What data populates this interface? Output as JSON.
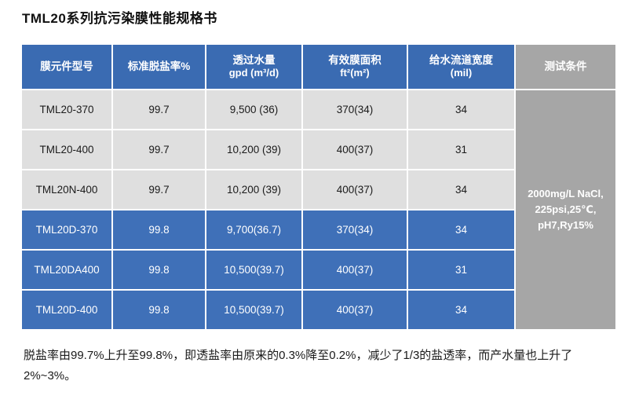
{
  "title": "TML20系列抗污染膜性能规格书",
  "table": {
    "headers": [
      {
        "line1": "膜元件型号",
        "line2": ""
      },
      {
        "line1": "标准脱盐率%",
        "line2": ""
      },
      {
        "line1": "透过水量",
        "line2": "gpd (m³/d)"
      },
      {
        "line1": "有效膜面积",
        "line2": "ft²(m²)"
      },
      {
        "line1": "给水流道宽度",
        "line2": "(mil)"
      },
      {
        "line1": "测试条件",
        "line2": ""
      }
    ],
    "rows": [
      {
        "model": "TML20-370",
        "rejection": "99.7",
        "flow": "9,500 (36)",
        "area": "370(34)",
        "channel": "34"
      },
      {
        "model": "TML20-400",
        "rejection": "99.7",
        "flow": "10,200 (39)",
        "area": "400(37)",
        "channel": "31"
      },
      {
        "model": "TML20N-400",
        "rejection": "99.7",
        "flow": "10,200 (39)",
        "area": "400(37)",
        "channel": "34"
      },
      {
        "model": "TML20D-370",
        "rejection": "99.8",
        "flow": "9,700(36.7)",
        "area": "370(34)",
        "channel": "34"
      },
      {
        "model": "TML20DA400",
        "rejection": "99.8",
        "flow": "10,500(39.7)",
        "area": "400(37)",
        "channel": "31"
      },
      {
        "model": "TML20D-400",
        "rejection": "99.8",
        "flow": "10,500(39.7)",
        "area": "400(37)",
        "channel": "34"
      }
    ],
    "test_conditions": [
      "2000mg/L NaCl,",
      "225psi,25℃,",
      "pH7,Ry15%"
    ]
  },
  "footer": {
    "text": "脱盐率由99.7%上升至99.8%，即透盐率由原来的0.3%降至0.2%，减少了1/3的盐透率，而产水量也上升了2%~3%。"
  },
  "colors": {
    "header_blue": "#3a6bb2",
    "row_blue": "#3f70b8",
    "row_light_gray": "#dfdfdf",
    "test_condition_gray": "#a6a6a6",
    "header_text": "#ffffff",
    "body_text": "#1b1b1b"
  }
}
